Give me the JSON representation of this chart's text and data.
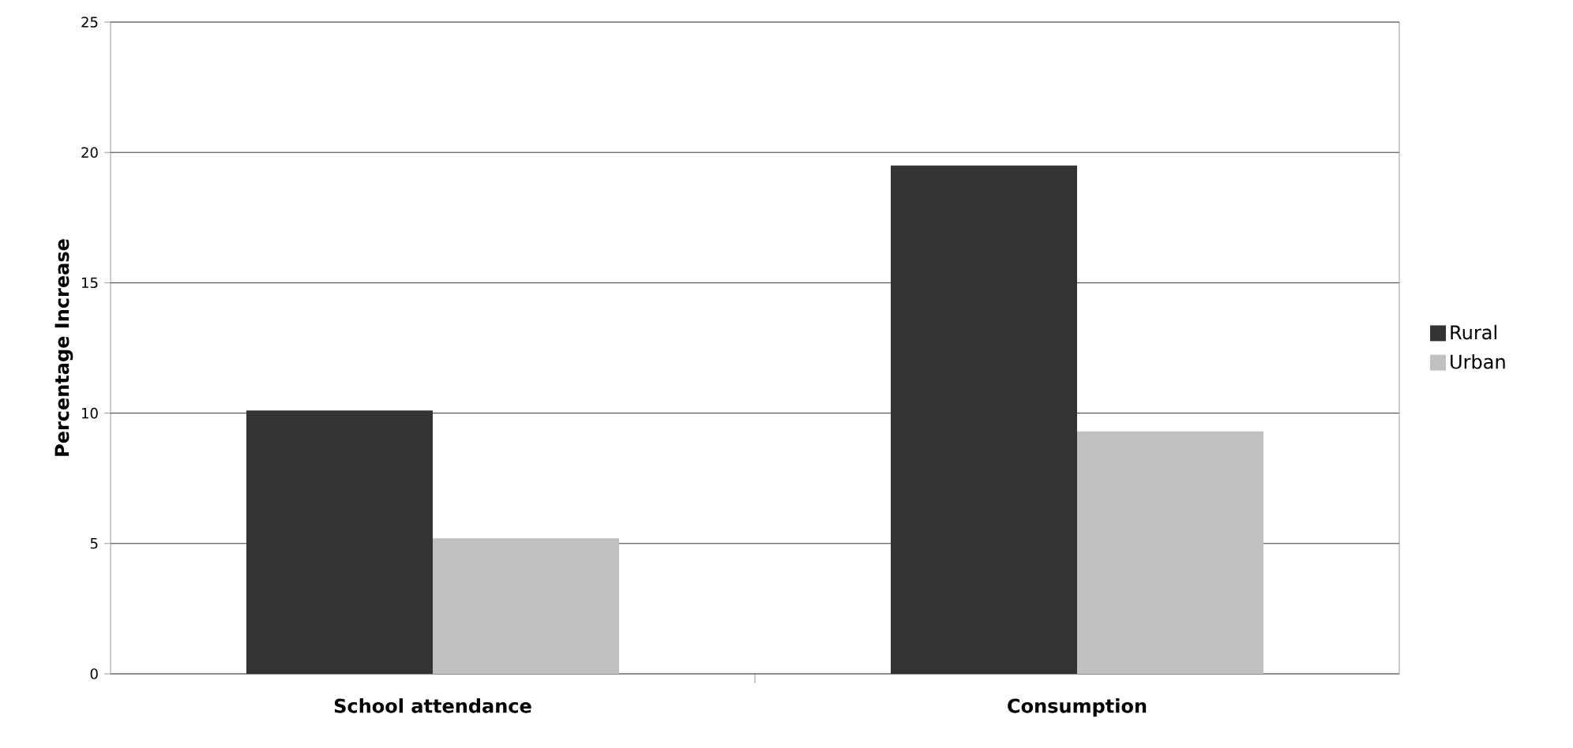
{
  "chart_data": {
    "type": "bar",
    "categories": [
      "School attendance",
      "Consumption"
    ],
    "series": [
      {
        "name": "Rural",
        "color": "#333333",
        "values": [
          10.1,
          19.5
        ]
      },
      {
        "name": "Urban",
        "color": "#c0c0c0",
        "values": [
          5.2,
          9.3
        ]
      }
    ],
    "ylabel": "Percentage Increase",
    "ylim": [
      0,
      25
    ],
    "yticks": [
      0,
      5,
      10,
      15,
      20,
      25
    ],
    "grid": "y",
    "legend": "right"
  }
}
